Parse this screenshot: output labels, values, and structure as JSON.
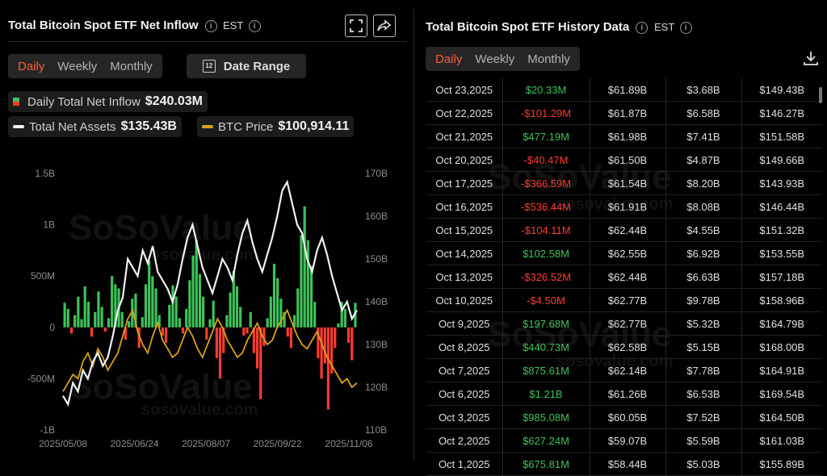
{
  "left": {
    "title": "Total Bitcoin Spot ETF Net Inflow",
    "tz": "EST",
    "tabs": [
      "Daily",
      "Weekly",
      "Monthly"
    ],
    "active_tab": "Daily",
    "date_range_label": "Date Range",
    "date_range_icon": "12",
    "legend": {
      "inflow_label": "Daily Total Net Inflow",
      "inflow_value": "$240.03M",
      "assets_label": "Total Net Assets",
      "assets_value": "$135.43B",
      "btc_label": "BTC Price",
      "btc_value": "$100,914.11"
    },
    "watermark": "SoSoValue",
    "watermark_url": "sosovalue.com"
  },
  "right": {
    "title": "Total Bitcoin Spot ETF History Data",
    "tz": "EST",
    "tabs": [
      "Daily",
      "Weekly",
      "Monthly"
    ],
    "active_tab": "Daily",
    "rows": [
      {
        "date": "Oct 23,2025",
        "inflow": "$20.33M",
        "sign": "pos",
        "assets": "$61.89B",
        "value": "$3.68B",
        "btc": "$149.43B"
      },
      {
        "date": "Oct 22,2025",
        "inflow": "-$101.29M",
        "sign": "neg",
        "assets": "$61.87B",
        "value": "$6.58B",
        "btc": "$146.27B"
      },
      {
        "date": "Oct 21,2025",
        "inflow": "$477.19M",
        "sign": "pos",
        "assets": "$61.98B",
        "value": "$7.41B",
        "btc": "$151.58B"
      },
      {
        "date": "Oct 20,2025",
        "inflow": "-$40.47M",
        "sign": "neg",
        "assets": "$61.50B",
        "value": "$4.87B",
        "btc": "$149.66B"
      },
      {
        "date": "Oct 17,2025",
        "inflow": "-$366.59M",
        "sign": "neg",
        "assets": "$61.54B",
        "value": "$8.20B",
        "btc": "$143.93B"
      },
      {
        "date": "Oct 16,2025",
        "inflow": "-$536.44M",
        "sign": "neg",
        "assets": "$61.91B",
        "value": "$8.08B",
        "btc": "$146.44B"
      },
      {
        "date": "Oct 15,2025",
        "inflow": "-$104.11M",
        "sign": "neg",
        "assets": "$62.44B",
        "value": "$4.55B",
        "btc": "$151.32B"
      },
      {
        "date": "Oct 14,2025",
        "inflow": "$102.58M",
        "sign": "pos",
        "assets": "$62.55B",
        "value": "$6.92B",
        "btc": "$153.55B"
      },
      {
        "date": "Oct 13,2025",
        "inflow": "-$326.52M",
        "sign": "neg",
        "assets": "$62.44B",
        "value": "$6.63B",
        "btc": "$157.18B"
      },
      {
        "date": "Oct 10,2025",
        "inflow": "-$4.50M",
        "sign": "neg",
        "assets": "$62.77B",
        "value": "$9.78B",
        "btc": "$158.96B"
      },
      {
        "date": "Oct 9,2025",
        "inflow": "$197.68M",
        "sign": "pos",
        "assets": "$62.77B",
        "value": "$5.32B",
        "btc": "$164.79B"
      },
      {
        "date": "Oct 8,2025",
        "inflow": "$440.73M",
        "sign": "pos",
        "assets": "$62.58B",
        "value": "$5.15B",
        "btc": "$168.00B"
      },
      {
        "date": "Oct 7,2025",
        "inflow": "$875.61M",
        "sign": "pos",
        "assets": "$62.14B",
        "value": "$7.78B",
        "btc": "$164.91B"
      },
      {
        "date": "Oct 6,2025",
        "inflow": "$1.21B",
        "sign": "pos",
        "assets": "$61.26B",
        "value": "$6.53B",
        "btc": "$169.54B"
      },
      {
        "date": "Oct 3,2025",
        "inflow": "$985.08M",
        "sign": "pos",
        "assets": "$60.05B",
        "value": "$7.52B",
        "btc": "$164.50B"
      },
      {
        "date": "Oct 2,2025",
        "inflow": "$627.24M",
        "sign": "pos",
        "assets": "$59.07B",
        "value": "$5.59B",
        "btc": "$161.03B"
      },
      {
        "date": "Oct 1,2025",
        "inflow": "$675.81M",
        "sign": "pos",
        "assets": "$58.44B",
        "value": "$5.03B",
        "btc": "$155.89B"
      }
    ]
  },
  "colors": {
    "accent": "#ff5a3c",
    "inflow_pos": "#3ec25a",
    "inflow_neg": "#ff3b30",
    "assets_line": "#f2f2f2",
    "btc_line": "#d9a21b"
  },
  "chart_data": {
    "type": "bar",
    "x_ticks": [
      "2025/05/08",
      "2025/06/24",
      "2025/08/07",
      "2025/09/22",
      "2025/11/06"
    ],
    "y_left_ticks": [
      "1.5B",
      "1B",
      "500M",
      "0",
      "-500M",
      "-1B"
    ],
    "y_left_range": [
      -1000000000,
      1500000000
    ],
    "y_right_ticks": [
      "170B",
      "160B",
      "150B",
      "140B",
      "130B",
      "120B",
      "110B"
    ],
    "y_right_range": [
      110000000000,
      170000000000
    ],
    "series": [
      {
        "name": "Daily Total Net Inflow",
        "type": "bar",
        "values_millions": [
          240,
          180,
          -60,
          120,
          300,
          80,
          400,
          250,
          -90,
          150,
          350,
          200,
          -40,
          90,
          500,
          420,
          380,
          150,
          -120,
          60,
          280,
          330,
          -200,
          100,
          420,
          650,
          500,
          380,
          120,
          -80,
          -150,
          220,
          410,
          300,
          90,
          -60,
          180,
          460,
          700,
          850,
          520,
          300,
          -120,
          80,
          260,
          -300,
          -500,
          -250,
          120,
          340,
          550,
          400,
          200,
          -80,
          -60,
          150,
          -250,
          -400,
          -700,
          -180,
          90,
          300,
          620,
          480,
          280,
          150,
          -90,
          -200,
          120,
          380,
          900,
          1180,
          850,
          600,
          250,
          -300,
          -500,
          -350,
          -800,
          -450,
          -200,
          40,
          250,
          180,
          -150,
          -320,
          240
        ]
      },
      {
        "name": "Total Net Assets",
        "type": "line"
      },
      {
        "name": "BTC Price",
        "type": "line"
      }
    ],
    "grid": false,
    "legend_placement": "top-left"
  }
}
